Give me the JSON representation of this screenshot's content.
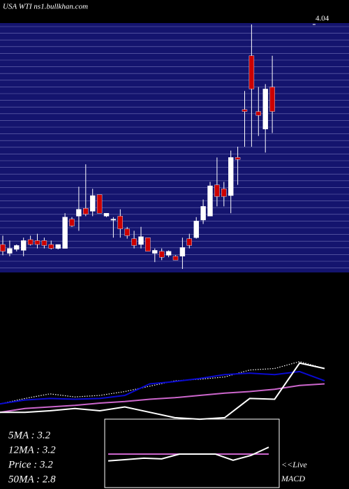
{
  "chart_data": [
    {
      "type": "candlestick",
      "title": "USA WTI ns1.bullkhan.com",
      "ylim": [
        1.54,
        4.04
      ],
      "yticks": [
        4.04
      ],
      "up_color": "#ffffff",
      "down_color": "#cc0000",
      "open": [
        1.79,
        1.7,
        1.74,
        1.73,
        1.84,
        1.83,
        1.83,
        1.79,
        1.75,
        1.75,
        2.05,
        2.08,
        2.16,
        2.13,
        2.3,
        2.08,
        2.04,
        2.08,
        1.95,
        1.85,
        1.79,
        1.86,
        1.7,
        1.72,
        1.68,
        1.67,
        1.67,
        1.85,
        1.86,
        2.04,
        2.08,
        2.4,
        2.36,
        2.29,
        2.68,
        3.17,
        3.72,
        3.15,
        2.97,
        3.4
      ],
      "high": [
        1.88,
        1.83,
        1.79,
        1.86,
        1.88,
        1.9,
        1.86,
        1.83,
        1.79,
        2.11,
        2.07,
        2.38,
        2.61,
        2.36,
        2.3,
        2.11,
        2.07,
        2.15,
        1.97,
        1.93,
        1.97,
        1.86,
        1.75,
        1.75,
        1.73,
        1.68,
        1.86,
        1.9,
        2.07,
        2.25,
        2.43,
        2.68,
        2.43,
        2.75,
        2.79,
        3.36,
        4.04,
        3.4,
        3.43,
        3.72
      ],
      "low": [
        1.68,
        1.67,
        1.72,
        1.67,
        1.78,
        1.75,
        1.75,
        1.74,
        1.74,
        1.75,
        1.97,
        1.93,
        2.08,
        2.08,
        2.11,
        2.07,
        1.86,
        1.86,
        1.85,
        1.75,
        1.75,
        1.72,
        1.61,
        1.63,
        1.66,
        1.63,
        1.54,
        1.75,
        1.85,
        2.0,
        2.08,
        2.18,
        2.18,
        2.11,
        2.4,
        2.79,
        2.79,
        2.9,
        2.73,
        2.93
      ],
      "close": [
        1.72,
        1.75,
        1.78,
        1.83,
        1.79,
        1.79,
        1.78,
        1.75,
        1.79,
        2.07,
        1.98,
        2.15,
        2.1,
        2.29,
        2.11,
        2.11,
        2.05,
        1.95,
        1.88,
        1.78,
        1.87,
        1.72,
        1.73,
        1.66,
        1.72,
        1.63,
        1.76,
        1.78,
        2.03,
        2.18,
        2.39,
        2.28,
        2.28,
        2.68,
        2.66,
        3.15,
        3.38,
        3.11,
        3.38,
        3.15
      ]
    },
    {
      "type": "line",
      "ylim": [
        0,
        100
      ],
      "annotations": [
        "5MA : 3.2",
        "12MA : 3.2",
        "Price  : 3.2",
        "50MA : 2.8"
      ],
      "series": [
        {
          "color": "#ffffff",
          "dash": true,
          "values": [
            29,
            36,
            42,
            38,
            40,
            45,
            52,
            59,
            61,
            64,
            73,
            75,
            84,
            75
          ]
        },
        {
          "color": "#0a0ad0",
          "values": [
            29,
            34,
            36,
            35,
            36,
            40,
            55,
            58,
            62,
            67,
            69,
            67,
            71,
            59
          ]
        },
        {
          "color": "#cc66cc",
          "values": [
            18,
            23,
            25,
            27,
            30,
            32,
            35,
            37,
            40,
            43,
            45,
            48,
            53,
            55
          ]
        },
        {
          "color": "#ffffff",
          "values": [
            18,
            18,
            20,
            23,
            20,
            25,
            18,
            11,
            9,
            11,
            36,
            35,
            82,
            75
          ]
        }
      ]
    },
    {
      "type": "line",
      "ylim": [
        0,
        100
      ],
      "annotations": [
        "<<Live",
        "MACD"
      ],
      "series": [
        {
          "color": "#cc66cc",
          "values": [
            49,
            49,
            49,
            49,
            49,
            49,
            49,
            49,
            49,
            49
          ]
        },
        {
          "color": "#ffffff",
          "values": [
            39,
            41,
            43,
            42,
            49,
            49,
            49,
            40,
            47,
            59
          ]
        }
      ]
    }
  ]
}
